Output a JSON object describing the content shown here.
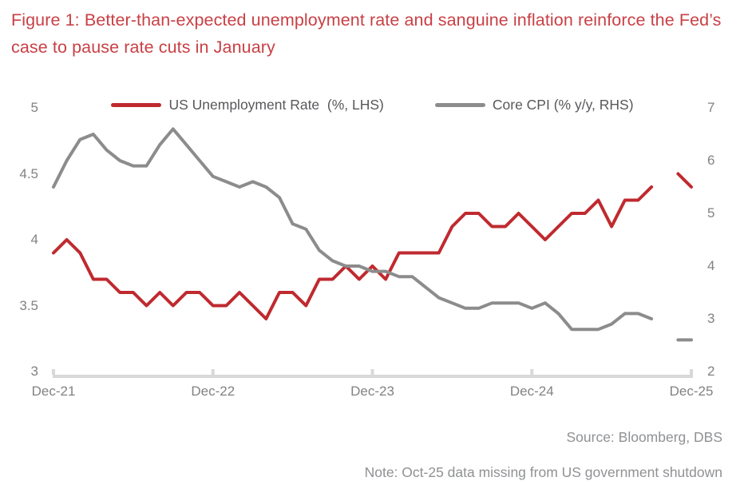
{
  "figure": {
    "title": "Figure 1: Better-than-expected unemployment rate and sanguine inflation reinforce the Fed’s case to pause rate cuts in January",
    "source": "Source: Bloomberg, DBS",
    "note": "Note: Oct-25 data missing from US government shutdown"
  },
  "colors": {
    "title": "#c94045",
    "unemployment_red": "#bf2a2f",
    "core_cpi_gray": "#8c8c8c",
    "axis_line": "#d8d8d8",
    "tick_text": "#828282",
    "footnote_text": "#8f9194"
  },
  "chart_data": {
    "type": "line",
    "title": "Better-than-expected unemployment rate and sanguine inflation reinforce the Fed’s case to pause rate cuts in January",
    "xlabel": "",
    "ylabel_left": "US Unemployment Rate (%, LHS)",
    "ylabel_right": "Core CPI (% y/y, RHS)",
    "grid": false,
    "legend_position": "top-center",
    "missing_data_note": "Oct-25 data missing from US government shutdown",
    "x_tick_labels": [
      "Dec-21",
      "Dec-22",
      "Dec-23",
      "Dec-24",
      "Dec-25"
    ],
    "left_axis": {
      "min": 3,
      "max": 5,
      "ticks": [
        5,
        4.5,
        4,
        3.5,
        3
      ]
    },
    "right_axis": {
      "min": 2,
      "max": 7,
      "ticks": [
        7,
        6,
        5,
        4,
        3,
        2
      ]
    },
    "months": [
      "Dec-21",
      "Jan-22",
      "Feb-22",
      "Mar-22",
      "Apr-22",
      "May-22",
      "Jun-22",
      "Jul-22",
      "Aug-22",
      "Sep-22",
      "Oct-22",
      "Nov-22",
      "Dec-22",
      "Jan-23",
      "Feb-23",
      "Mar-23",
      "Apr-23",
      "May-23",
      "Jun-23",
      "Jul-23",
      "Aug-23",
      "Sep-23",
      "Oct-23",
      "Nov-23",
      "Dec-23",
      "Jan-24",
      "Feb-24",
      "Mar-24",
      "Apr-24",
      "May-24",
      "Jun-24",
      "Jul-24",
      "Aug-24",
      "Sep-24",
      "Oct-24",
      "Nov-24",
      "Dec-24",
      "Jan-25",
      "Feb-25",
      "Mar-25",
      "Apr-25",
      "May-25",
      "Jun-25",
      "Jul-25",
      "Aug-25",
      "Sep-25",
      "Oct-25",
      "Nov-25",
      "Dec-25"
    ],
    "series": [
      {
        "name": "US Unemployment Rate  (%, LHS)",
        "axis": "left",
        "color": "#bf2a2f",
        "values": [
          3.9,
          4.0,
          3.9,
          3.7,
          3.7,
          3.6,
          3.6,
          3.5,
          3.6,
          3.5,
          3.6,
          3.6,
          3.5,
          3.5,
          3.6,
          3.5,
          3.4,
          3.6,
          3.6,
          3.5,
          3.7,
          3.7,
          3.8,
          3.7,
          3.8,
          3.7,
          3.9,
          3.9,
          3.9,
          3.9,
          4.1,
          4.2,
          4.2,
          4.1,
          4.1,
          4.2,
          4.1,
          4.0,
          4.1,
          4.2,
          4.2,
          4.3,
          4.1,
          4.3,
          4.3,
          4.4,
          null,
          4.5,
          4.4
        ]
      },
      {
        "name": "Core CPI (% y/y, RHS)",
        "axis": "right",
        "color": "#8c8c8c",
        "values": [
          5.5,
          6.0,
          6.4,
          6.5,
          6.2,
          6.0,
          5.9,
          5.9,
          6.3,
          6.6,
          6.3,
          6.0,
          5.7,
          5.6,
          5.5,
          5.6,
          5.5,
          5.3,
          4.8,
          4.7,
          4.3,
          4.1,
          4.0,
          4.0,
          3.9,
          3.9,
          3.8,
          3.8,
          3.6,
          3.4,
          3.3,
          3.2,
          3.2,
          3.3,
          3.3,
          3.3,
          3.2,
          3.3,
          3.1,
          2.8,
          2.8,
          2.8,
          2.9,
          3.1,
          3.1,
          3.0,
          null,
          2.6,
          2.6
        ]
      }
    ]
  }
}
